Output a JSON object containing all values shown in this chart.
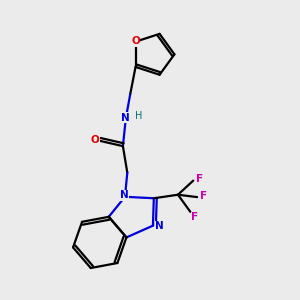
{
  "background_color": "#ebebeb",
  "atom_colors": {
    "C": "#000000",
    "N": "#0000dd",
    "O": "#dd0000",
    "F": "#cc00aa",
    "H": "#007070"
  },
  "figsize": [
    3.0,
    3.0
  ],
  "dpi": 100
}
